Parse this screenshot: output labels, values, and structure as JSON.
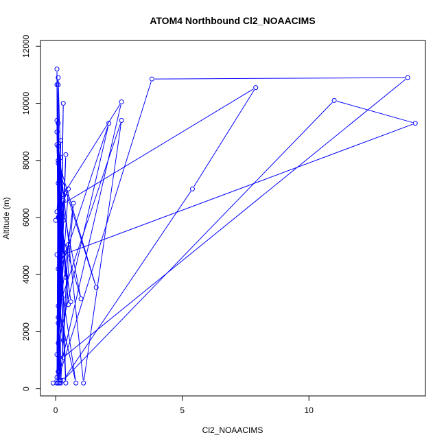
{
  "chart_data": {
    "type": "line",
    "title": "ATOM4 Northbound Cl2_NOAACIMS",
    "xlabel": "Cl2_NOAACIMS",
    "ylabel": "Altitude (m)",
    "xlim": [
      -0.6,
      14.6
    ],
    "ylim": [
      -250,
      12200
    ],
    "x_ticks": [
      0,
      5,
      10
    ],
    "x_tick_labels": [
      "0",
      "5",
      "10"
    ],
    "y_ticks": [
      0,
      2000,
      4000,
      6000,
      8000,
      10000,
      12000
    ],
    "y_tick_labels": [
      "0",
      "2000",
      "4000",
      "6000",
      "8000",
      "10000",
      "12000"
    ],
    "grid": false,
    "legend": "none",
    "line_color": "#0000ff",
    "marker": "open-circle",
    "series": [
      {
        "points": [
          [
            -0.1,
            200
          ],
          [
            0.05,
            400
          ],
          [
            0.1,
            10650
          ],
          [
            0.2,
            300
          ],
          [
            0.05,
            9400
          ],
          [
            0.15,
            200
          ],
          [
            0.3,
            10000
          ],
          [
            0.1,
            600
          ],
          [
            0.2,
            8700
          ],
          [
            0.05,
            1200
          ],
          [
            0.4,
            8200
          ],
          [
            0.1,
            200
          ],
          [
            0.05,
            11200
          ],
          [
            0.1,
            2500
          ],
          [
            0.3,
            6600
          ],
          [
            0.0,
            5900
          ],
          [
            0.5,
            7000
          ],
          [
            0.1,
            1600
          ],
          [
            2.1,
            9300
          ],
          [
            0.2,
            4200
          ],
          [
            0.1,
            8500
          ],
          [
            0.3,
            6800
          ],
          [
            2.6,
            10050
          ],
          [
            0.05,
            200
          ],
          [
            0.2,
            7500
          ],
          [
            1.6,
            3550
          ],
          [
            0.1,
            8000
          ],
          [
            0.25,
            3200
          ],
          [
            2.6,
            9400
          ],
          [
            1.1,
            200
          ],
          [
            0.05,
            9000
          ],
          [
            0.4,
            3900
          ],
          [
            0.1,
            7200
          ],
          [
            1.0,
            3150
          ],
          [
            0.2,
            5600
          ],
          [
            0.6,
            3050
          ],
          [
            0.1,
            6000
          ],
          [
            0.1,
            2900
          ],
          [
            0.8,
            200
          ],
          [
            0.05,
            4700
          ],
          [
            0.3,
            5900
          ],
          [
            0.05,
            200
          ],
          [
            3.8,
            10850
          ],
          [
            13.9,
            10900
          ],
          [
            0.3,
            1100
          ],
          [
            0.1,
            4200
          ],
          [
            0.5,
            5050
          ],
          [
            0.2,
            200
          ],
          [
            0.1,
            7900
          ],
          [
            0.5,
            2950
          ],
          [
            0.15,
            6400
          ],
          [
            7.9,
            10550
          ],
          [
            5.4,
            7000
          ],
          [
            0.3,
            300
          ],
          [
            11.0,
            10100
          ],
          [
            14.2,
            9300
          ],
          [
            0.3,
            4700
          ],
          [
            0.1,
            10900
          ],
          [
            0.05,
            10650
          ],
          [
            0.3,
            1700
          ],
          [
            0.7,
            6500
          ],
          [
            0.1,
            2300
          ],
          [
            0.2,
            8100
          ],
          [
            0.05,
            6200
          ],
          [
            0.4,
            200
          ],
          [
            0.1,
            9300
          ],
          [
            0.2,
            3600
          ],
          [
            0.05,
            8550
          ]
        ]
      }
    ]
  }
}
